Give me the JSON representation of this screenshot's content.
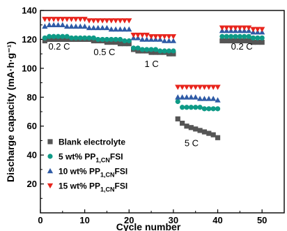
{
  "chart_data": {
    "type": "scatter",
    "xlabel": "Cycle number",
    "ylabel": "Discharge capacity (mA·h·g⁻¹)",
    "xlim": [
      0,
      55
    ],
    "ylim": [
      0,
      140
    ],
    "xticks": [
      0,
      10,
      20,
      30,
      40,
      50
    ],
    "yticks": [
      20,
      40,
      60,
      80,
      100,
      120,
      140
    ],
    "annotations": [
      {
        "text": "0.2 C",
        "x": 1.8,
        "y": 113
      },
      {
        "text": "0.5 C",
        "x": 12,
        "y": 109
      },
      {
        "text": "1 C",
        "x": 23.5,
        "y": 101
      },
      {
        "text": "5 C",
        "x": 32.5,
        "y": 46
      },
      {
        "text": "0.2 C",
        "x": 43,
        "y": 113
      }
    ],
    "legend_position": "lower-left",
    "series": [
      {
        "name_main": "Blank electrolyte",
        "name_sub": "",
        "name_tail": "",
        "marker": "square",
        "color": "#555555",
        "x": [
          1,
          2,
          3,
          4,
          5,
          6,
          7,
          8,
          9,
          10,
          11,
          12,
          13,
          14,
          15,
          16,
          17,
          18,
          19,
          20,
          21,
          22,
          23,
          24,
          25,
          26,
          27,
          28,
          29,
          30,
          31,
          32,
          33,
          34,
          35,
          36,
          37,
          38,
          39,
          40,
          41,
          42,
          43,
          44,
          45,
          46,
          47,
          48,
          49,
          50
        ],
        "y": [
          119,
          120,
          120,
          120,
          120,
          120,
          120,
          120,
          120,
          120,
          120,
          119,
          119,
          119,
          118,
          118,
          118,
          117,
          117,
          117,
          113,
          112,
          112,
          112,
          111,
          111,
          111,
          111,
          110,
          110,
          65,
          62,
          60,
          59,
          58,
          57,
          56,
          55,
          54,
          52,
          119,
          119,
          119,
          119,
          119,
          119,
          119,
          118,
          118,
          118
        ]
      },
      {
        "name_main": "5 wt% PP",
        "name_sub": "1,CN",
        "name_tail": "FSI",
        "marker": "circle",
        "color": "#0e9a86",
        "x": [
          1,
          2,
          3,
          4,
          5,
          6,
          7,
          8,
          9,
          10,
          11,
          12,
          13,
          14,
          15,
          16,
          17,
          18,
          19,
          20,
          21,
          22,
          23,
          24,
          25,
          26,
          27,
          28,
          29,
          30,
          31,
          32,
          33,
          34,
          35,
          36,
          37,
          38,
          39,
          40,
          41,
          42,
          43,
          44,
          45,
          46,
          47,
          48,
          49,
          50
        ],
        "y": [
          121,
          122,
          122,
          122,
          122,
          122,
          121,
          121,
          121,
          121,
          121,
          121,
          120,
          120,
          120,
          120,
          120,
          120,
          119,
          119,
          114,
          114,
          113,
          113,
          113,
          113,
          112,
          112,
          112,
          112,
          77,
          73,
          73,
          73,
          73,
          73,
          72,
          72,
          72,
          72,
          122,
          122,
          122,
          122,
          122,
          122,
          122,
          121,
          121,
          121
        ]
      },
      {
        "name_main": "10 wt% PP",
        "name_sub": "1,CN",
        "name_tail": "FSI",
        "marker": "triangle-up",
        "color": "#2f5ba6",
        "x": [
          1,
          2,
          3,
          4,
          5,
          6,
          7,
          8,
          9,
          10,
          11,
          12,
          13,
          14,
          15,
          16,
          17,
          18,
          19,
          20,
          21,
          22,
          23,
          24,
          25,
          26,
          27,
          28,
          29,
          30,
          31,
          32,
          33,
          34,
          35,
          36,
          37,
          38,
          39,
          40,
          41,
          42,
          43,
          44,
          45,
          46,
          47,
          48,
          49,
          50
        ],
        "y": [
          129,
          130,
          130,
          130,
          130,
          129,
          129,
          129,
          129,
          129,
          128,
          128,
          128,
          128,
          128,
          127,
          127,
          127,
          127,
          127,
          121,
          121,
          120,
          120,
          120,
          120,
          120,
          119,
          119,
          119,
          80,
          80,
          80,
          80,
          80,
          79,
          79,
          79,
          79,
          78,
          126,
          126,
          126,
          126,
          126,
          126,
          126,
          125,
          125,
          125
        ]
      },
      {
        "name_main": "15 wt% PP",
        "name_sub": "1,CN",
        "name_tail": "FSI",
        "marker": "triangle-down",
        "color": "#e8241c",
        "x": [
          1,
          2,
          3,
          4,
          5,
          6,
          7,
          8,
          9,
          10,
          11,
          12,
          13,
          14,
          15,
          16,
          17,
          18,
          19,
          20,
          21,
          22,
          23,
          24,
          25,
          26,
          27,
          28,
          29,
          30,
          31,
          32,
          33,
          34,
          35,
          36,
          37,
          38,
          39,
          40,
          41,
          42,
          43,
          44,
          45,
          46,
          47,
          48,
          49,
          50
        ],
        "y": [
          134,
          134,
          134,
          134,
          134,
          134,
          134,
          134,
          134,
          134,
          133,
          133,
          133,
          133,
          133,
          133,
          133,
          133,
          133,
          133,
          123,
          123,
          123,
          123,
          122,
          122,
          122,
          122,
          122,
          122,
          87,
          87,
          87,
          87,
          87,
          87,
          87,
          87,
          87,
          87,
          128,
          128,
          128,
          128,
          128,
          128,
          128,
          127,
          127,
          127
        ]
      }
    ]
  }
}
